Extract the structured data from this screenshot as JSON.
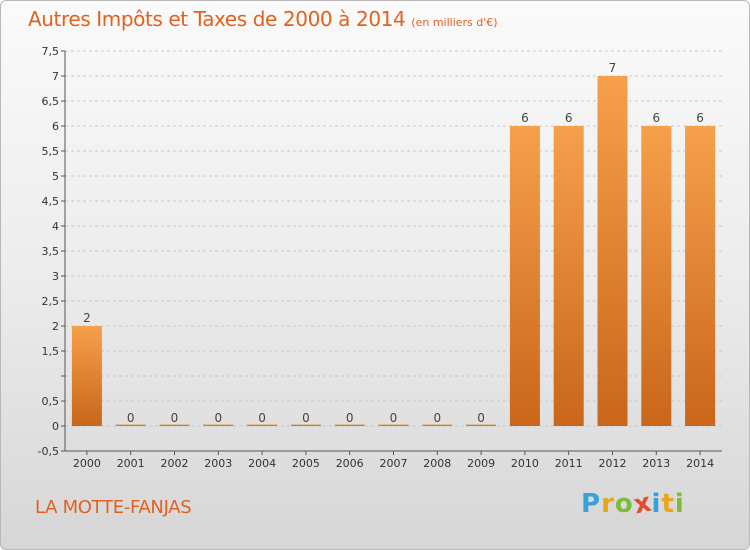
{
  "title": "Autres Impôts et Taxes de 2000 à 2014",
  "unit": "(en milliers d'€)",
  "place": "LA MOTTE-FANJAS",
  "logo": {
    "letters": [
      "P",
      "r",
      "o",
      "x",
      "i",
      "t",
      "i"
    ],
    "colors": [
      "#3aa0dc",
      "#e8a51d",
      "#7bbd3a",
      "#e24b2e",
      "#3aa0dc",
      "#e8a51d",
      "#7bbd3a"
    ]
  },
  "colors": {
    "bar_top": "#f6a04b",
    "bar_bottom": "#c9661a",
    "title": "#e2611f"
  },
  "chart_data": {
    "type": "bar",
    "categories": [
      "2000",
      "2001",
      "2002",
      "2003",
      "2004",
      "2005",
      "2006",
      "2007",
      "2008",
      "2009",
      "2010",
      "2011",
      "2012",
      "2013",
      "2014"
    ],
    "values": [
      2,
      0,
      0,
      0,
      0,
      0,
      0,
      0,
      0,
      0,
      6,
      6,
      7,
      6,
      6
    ],
    "value_labels": [
      "2",
      "0",
      "0",
      "0",
      "0",
      "0",
      "0",
      "0",
      "0",
      "0",
      "6",
      "6",
      "7",
      "6",
      "6"
    ],
    "ylim": [
      -0.5,
      7.5
    ],
    "yticks": [
      -0.5,
      0,
      0.5,
      1,
      1.5,
      2,
      2.5,
      3,
      3.5,
      4,
      4.5,
      5,
      5.5,
      6,
      6.5,
      7,
      7.5
    ],
    "ytick_labels": [
      "-0,5",
      "0",
      "0,5",
      "",
      "1,5",
      "2",
      "2,5",
      "3",
      "3,5",
      "4",
      "4,5",
      "5",
      "5,5",
      "6",
      "6,5",
      "7",
      "7,5"
    ],
    "grid": "horizontal"
  }
}
